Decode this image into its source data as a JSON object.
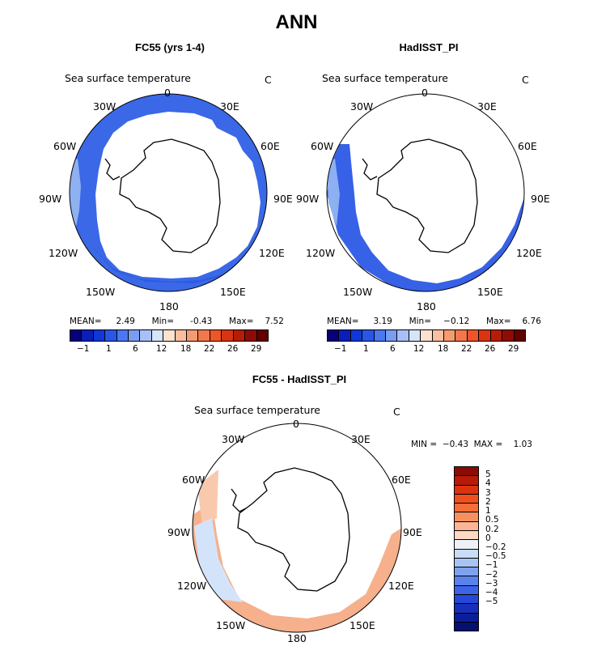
{
  "figure": {
    "title": "ANN",
    "panels": [
      {
        "id": "fc55",
        "title": "FC55 (yrs 1-4)",
        "variable": "Sea surface temperature",
        "units": "C",
        "lon_labels": [
          "0",
          "30E",
          "60E",
          "90E",
          "120E",
          "150E",
          "180",
          "150W",
          "120W",
          "90W",
          "60W",
          "30W"
        ],
        "stats": {
          "mean_label": "MEAN=",
          "mean": "2.49",
          "min_label": "Min=",
          "min": "-0.43",
          "max_label": "Max=",
          "max": "7.52"
        },
        "colorbar_ticks": [
          "−1",
          "1",
          "6",
          "12",
          "18",
          "22",
          "26",
          "29"
        ]
      },
      {
        "id": "hadisst",
        "title": "HadISST_PI",
        "variable": "Sea surface temperature",
        "units": "C",
        "lon_labels": [
          "0",
          "30E",
          "60E",
          "90E",
          "120E",
          "150E",
          "180",
          "150W",
          "120W",
          "90W",
          "60W",
          "30W"
        ],
        "stats": {
          "mean_label": "MEAN=",
          "mean": "3.19",
          "min_label": "Min=",
          "min": "−0.12",
          "max_label": "Max=",
          "max": "6.76"
        },
        "colorbar_ticks": [
          "−1",
          "1",
          "6",
          "12",
          "18",
          "22",
          "26",
          "29"
        ]
      },
      {
        "id": "diff",
        "title": "FC55 - HadISST_PI",
        "variable": "Sea surface temperature",
        "units": "C",
        "lon_labels": [
          "0",
          "30E",
          "60E",
          "90E",
          "120E",
          "150E",
          "180",
          "150W",
          "120W",
          "90W",
          "60W",
          "30W"
        ],
        "stats_text": "MIN =  −0.43  MAX =    1.03",
        "colorbar_ticks": [
          "5",
          "4",
          "3",
          "2",
          "1",
          "0.5",
          "0.2",
          "0",
          "−0.2",
          "−0.5",
          "−1",
          "−2",
          "−3",
          "−4",
          "−5"
        ]
      }
    ],
    "abs_colors": [
      "#08007a",
      "#0a1fb8",
      "#1038d8",
      "#2a55e8",
      "#4c78ef",
      "#7a9df2",
      "#a8c0f5",
      "#d6e4fa",
      "#fde2cf",
      "#f9bfa0",
      "#f59b72",
      "#f2784c",
      "#ee5528",
      "#da3412",
      "#b61d08",
      "#8e0c05",
      "#620100"
    ],
    "diff_colors": [
      "#8a0c04",
      "#b71a08",
      "#dc3210",
      "#f04f20",
      "#f46e38",
      "#f79060",
      "#fbb595",
      "#fdd8c2",
      "#eef2f8",
      "#c9dcf6",
      "#a8c4f2",
      "#7ea2ee",
      "#5a82ec",
      "#3b64e8",
      "#2648d8",
      "#1630bb",
      "#0b1e9a",
      "#061070"
    ],
    "data_colors": {
      "fc55_outer": "#3a68e6",
      "fc55_inner": "#2f5ae4",
      "fc55_pale": "#8fb1f1",
      "had_main": "#3761e6",
      "had_pale": "#8cb0f2",
      "diff_warm": "#f6b08c",
      "diff_warm2": "#f9c9ae",
      "diff_cool": "#d3e4fa",
      "diff_cool2": "#b7cff5"
    }
  }
}
